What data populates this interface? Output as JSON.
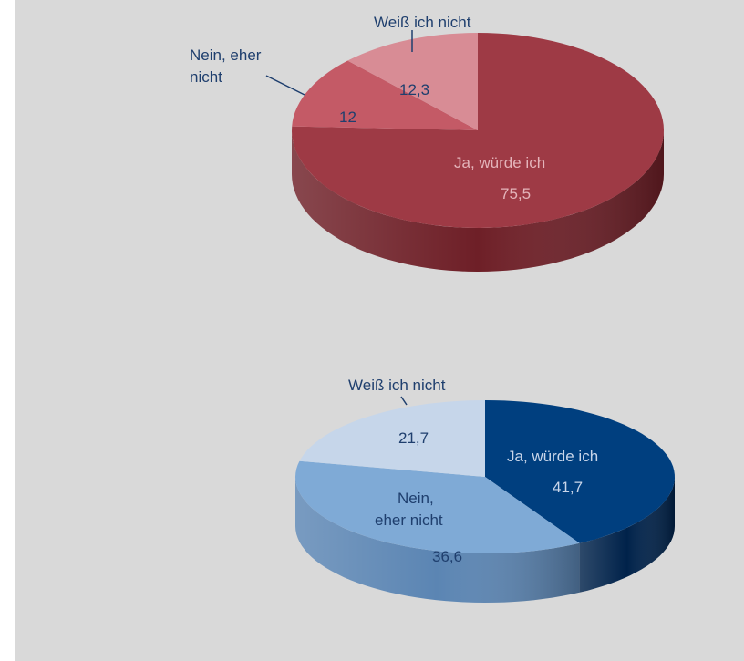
{
  "colors": {
    "background": "#d9d9d9",
    "label_dark": "#1f3f6e",
    "label_light": "#c9d6ea",
    "label_on_red": "#e4b4ba"
  },
  "chart_data": [
    {
      "type": "pie",
      "style": "3d",
      "categories": [
        "Ja, würde ich",
        "Nein, eher nicht",
        "Weiß ich nicht"
      ],
      "values": [
        75.5,
        12,
        12.3
      ],
      "value_labels": [
        "75,5",
        "12",
        "12,3"
      ],
      "colors": [
        "#9e3a45",
        "#c45a66",
        "#d88c95"
      ],
      "side_colors": [
        "#6e1f27",
        "#8c3340",
        "#a35a63"
      ],
      "category_labels": {
        "ja": "Ja, würde ich",
        "nein_1": "Nein, eher",
        "nein_2": "nicht",
        "weiss": "Weiß ich nicht"
      }
    },
    {
      "type": "pie",
      "style": "3d",
      "categories": [
        "Ja, würde ich",
        "Nein, eher nicht",
        "Weiß ich nicht"
      ],
      "values": [
        41.7,
        36.6,
        21.7
      ],
      "value_labels": [
        "41,7",
        "36,6",
        "21,7"
      ],
      "colors": [
        "#003f7f",
        "#7faad6",
        "#c6d6ea"
      ],
      "side_colors": [
        "#00224a",
        "#5b85b3",
        "#9fb5d1"
      ],
      "category_labels": {
        "ja": "Ja, würde ich",
        "nein_1": "Nein,",
        "nein_2": "eher nicht",
        "weiss": "Weiß ich nicht"
      }
    }
  ]
}
